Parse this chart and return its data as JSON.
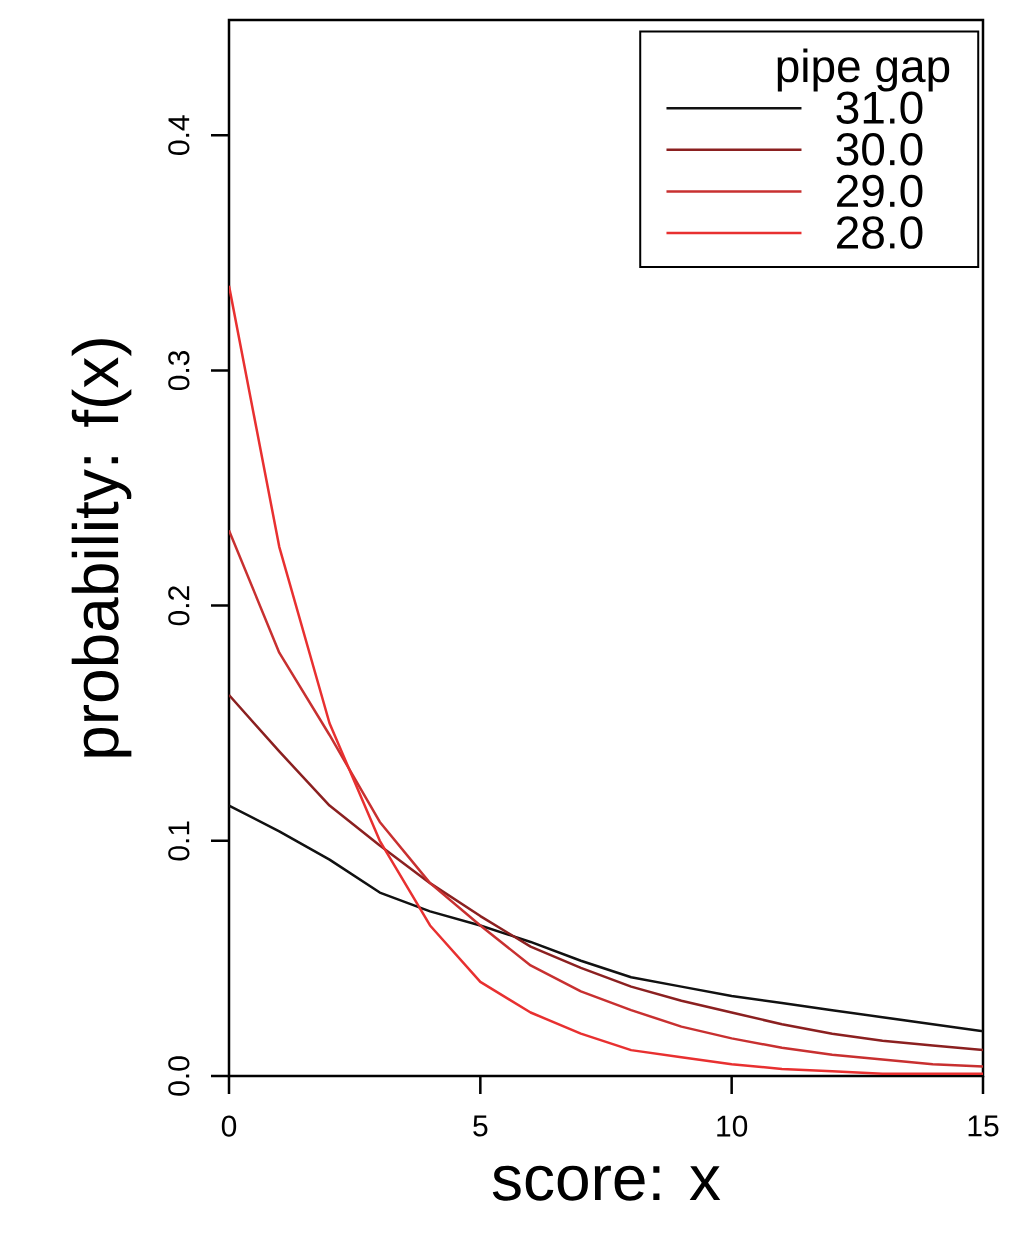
{
  "chart_data": {
    "type": "line",
    "xlabel": "score: x",
    "ylabel": "probability: f(x)",
    "legend_title": "pipe gap",
    "legend": "top right",
    "x": [
      0,
      1,
      2,
      3,
      4,
      5,
      6,
      7,
      8,
      9,
      10,
      11,
      12,
      13,
      14,
      15
    ],
    "xlim": [
      0,
      15
    ],
    "ylim": [
      0,
      0.449
    ],
    "xticks": [
      0,
      5,
      10,
      15
    ],
    "yticks": [
      {
        "value": 0,
        "label": "0.0"
      },
      0.1,
      0.2,
      0.3,
      0.4
    ],
    "series": [
      {
        "name": "31.0",
        "color": "#111111",
        "values": [
          0.115,
          0.104,
          0.092,
          0.078,
          0.07,
          0.064,
          0.057,
          0.049,
          0.042,
          0.038,
          0.034,
          0.031,
          0.028,
          0.025,
          0.022,
          0.019
        ]
      },
      {
        "name": "30.0",
        "color": "#8b2020",
        "values": [
          0.162,
          0.138,
          0.115,
          0.098,
          0.082,
          0.068,
          0.055,
          0.046,
          0.038,
          0.032,
          0.027,
          0.022,
          0.018,
          0.015,
          0.013,
          0.011
        ]
      },
      {
        "name": "29.0",
        "color": "#c83030",
        "values": [
          0.232,
          0.18,
          0.145,
          0.108,
          0.082,
          0.064,
          0.047,
          0.036,
          0.028,
          0.021,
          0.016,
          0.012,
          0.009,
          0.007,
          0.005,
          0.004
        ]
      },
      {
        "name": "28.0",
        "color": "#e83030",
        "values": [
          0.336,
          0.225,
          0.15,
          0.1,
          0.064,
          0.04,
          0.027,
          0.018,
          0.011,
          0.008,
          0.005,
          0.003,
          0.002,
          0.001,
          0.001,
          0.001
        ]
      }
    ]
  }
}
